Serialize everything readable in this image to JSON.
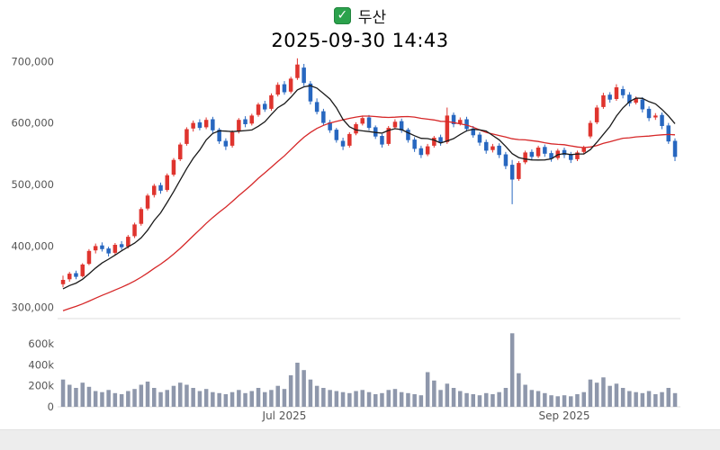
{
  "header": {
    "check_glyph": "✓",
    "title": "두산",
    "subtitle": "2025-09-30 14:43"
  },
  "colors": {
    "up": "#df342e",
    "down": "#2767c0",
    "ma_short": "#1a1a1a",
    "ma_long": "#d62728",
    "volume_bar": "#8e97ab",
    "axis_text": "#555555",
    "grid_line": "#dddddd",
    "check_green": "#2ba24c"
  },
  "chart_data": {
    "type": "candlestick",
    "title": "두산",
    "timestamp": "2025-09-30 14:43",
    "units": {
      "price_currency": "KRW",
      "price_scale": 1000,
      "volume_scale": 1000
    },
    "legend": null,
    "grid": false,
    "y_axis": {
      "ticks": [
        300000,
        400000,
        500000,
        600000,
        700000
      ],
      "range": [
        285000,
        715000
      ]
    },
    "volume_axis": {
      "ticks": [
        0,
        200000,
        400000,
        600000
      ],
      "tick_labels": [
        "0",
        "200k",
        "400k",
        "600k"
      ],
      "range": [
        0,
        720000
      ]
    },
    "x_ticks": [
      {
        "index": 34,
        "label": "Jul 2025"
      },
      {
        "index": 77,
        "label": "Sep 2025"
      }
    ],
    "ma_short_window": 7,
    "ma_long_window": 28,
    "prehistory_closes": [
      250,
      253,
      256,
      259,
      262,
      265,
      268,
      271,
      274,
      277,
      280,
      283,
      286,
      289,
      292,
      295,
      298,
      301,
      304,
      307,
      310,
      314,
      318,
      322,
      326,
      330,
      334,
      338
    ],
    "candle_columns": [
      "open",
      "high",
      "low",
      "close",
      "volume"
    ],
    "candles": [
      [
        338,
        352,
        333,
        345,
        260
      ],
      [
        346,
        358,
        342,
        355,
        210
      ],
      [
        356,
        360,
        346,
        350,
        180
      ],
      [
        351,
        372,
        349,
        370,
        230
      ],
      [
        371,
        395,
        369,
        392,
        190
      ],
      [
        393,
        404,
        388,
        400,
        150
      ],
      [
        401,
        406,
        391,
        395,
        140
      ],
      [
        396,
        399,
        383,
        388,
        160
      ],
      [
        389,
        405,
        386,
        402,
        130
      ],
      [
        403,
        408,
        394,
        398,
        120
      ],
      [
        399,
        418,
        396,
        415,
        150
      ],
      [
        416,
        438,
        413,
        435,
        170
      ],
      [
        436,
        463,
        433,
        460,
        210
      ],
      [
        461,
        485,
        458,
        482,
        240
      ],
      [
        483,
        501,
        479,
        498,
        180
      ],
      [
        499,
        503,
        485,
        490,
        140
      ],
      [
        491,
        518,
        488,
        515,
        160
      ],
      [
        516,
        543,
        513,
        540,
        200
      ],
      [
        541,
        568,
        538,
        565,
        230
      ],
      [
        566,
        593,
        563,
        590,
        210
      ],
      [
        591,
        604,
        586,
        600,
        180
      ],
      [
        601,
        606,
        588,
        592,
        150
      ],
      [
        593,
        609,
        590,
        605,
        170
      ],
      [
        606,
        610,
        584,
        588,
        140
      ],
      [
        589,
        592,
        566,
        570,
        130
      ],
      [
        571,
        575,
        556,
        562,
        120
      ],
      [
        563,
        588,
        560,
        585,
        140
      ],
      [
        586,
        608,
        583,
        605,
        160
      ],
      [
        606,
        611,
        593,
        598,
        130
      ],
      [
        599,
        615,
        596,
        612,
        150
      ],
      [
        613,
        633,
        610,
        630,
        180
      ],
      [
        631,
        636,
        618,
        622,
        140
      ],
      [
        623,
        648,
        620,
        645,
        160
      ],
      [
        646,
        666,
        643,
        662,
        200
      ],
      [
        663,
        668,
        646,
        650,
        170
      ],
      [
        651,
        675,
        648,
        672,
        300
      ],
      [
        673,
        705,
        670,
        695,
        420
      ],
      [
        690,
        696,
        660,
        665,
        350
      ],
      [
        664,
        668,
        630,
        635,
        260
      ],
      [
        634,
        640,
        614,
        618,
        200
      ],
      [
        619,
        623,
        596,
        600,
        180
      ],
      [
        601,
        605,
        584,
        588,
        160
      ],
      [
        589,
        592,
        568,
        572,
        150
      ],
      [
        571,
        576,
        556,
        562,
        140
      ],
      [
        563,
        585,
        560,
        582,
        130
      ],
      [
        583,
        601,
        580,
        598,
        150
      ],
      [
        599,
        612,
        596,
        608,
        160
      ],
      [
        609,
        613,
        588,
        592,
        140
      ],
      [
        593,
        596,
        574,
        578,
        120
      ],
      [
        579,
        582,
        560,
        565,
        130
      ],
      [
        566,
        595,
        563,
        592,
        160
      ],
      [
        593,
        606,
        590,
        602,
        170
      ],
      [
        603,
        607,
        584,
        588,
        140
      ],
      [
        589,
        592,
        568,
        572,
        130
      ],
      [
        573,
        577,
        553,
        558,
        120
      ],
      [
        559,
        563,
        543,
        548,
        110
      ],
      [
        549,
        566,
        546,
        562,
        330
      ],
      [
        563,
        579,
        560,
        576,
        250
      ],
      [
        577,
        581,
        563,
        568,
        160
      ],
      [
        569,
        625,
        566,
        612,
        220
      ],
      [
        613,
        617,
        593,
        598,
        180
      ],
      [
        599,
        609,
        596,
        605,
        150
      ],
      [
        606,
        610,
        586,
        590,
        130
      ],
      [
        591,
        595,
        576,
        580,
        120
      ],
      [
        581,
        585,
        563,
        568,
        110
      ],
      [
        569,
        573,
        550,
        555,
        130
      ],
      [
        556,
        566,
        552,
        562,
        120
      ],
      [
        563,
        567,
        543,
        548,
        140
      ],
      [
        549,
        553,
        525,
        530,
        180
      ],
      [
        532,
        540,
        468,
        508,
        700
      ],
      [
        509,
        538,
        506,
        535,
        320
      ],
      [
        536,
        555,
        533,
        552,
        210
      ],
      [
        553,
        557,
        540,
        545,
        160
      ],
      [
        546,
        563,
        543,
        560,
        150
      ],
      [
        561,
        565,
        545,
        550,
        130
      ],
      [
        551,
        555,
        537,
        542,
        110
      ],
      [
        543,
        558,
        540,
        555,
        100
      ],
      [
        556,
        560,
        543,
        548,
        110
      ],
      [
        549,
        553,
        535,
        540,
        100
      ],
      [
        541,
        555,
        538,
        552,
        120
      ],
      [
        553,
        563,
        550,
        560,
        140
      ],
      [
        578,
        604,
        575,
        600,
        260
      ],
      [
        601,
        629,
        598,
        625,
        230
      ],
      [
        626,
        649,
        623,
        645,
        280
      ],
      [
        646,
        650,
        633,
        638,
        200
      ],
      [
        639,
        663,
        636,
        658,
        220
      ],
      [
        655,
        660,
        640,
        645,
        180
      ],
      [
        646,
        650,
        627,
        632,
        150
      ],
      [
        633,
        643,
        630,
        640,
        140
      ],
      [
        638,
        642,
        617,
        622,
        130
      ],
      [
        623,
        627,
        603,
        608,
        150
      ],
      [
        609,
        616,
        605,
        612,
        120
      ],
      [
        613,
        617,
        590,
        595,
        140
      ],
      [
        596,
        600,
        566,
        570,
        180
      ],
      [
        571,
        575,
        538,
        545,
        130
      ]
    ]
  }
}
